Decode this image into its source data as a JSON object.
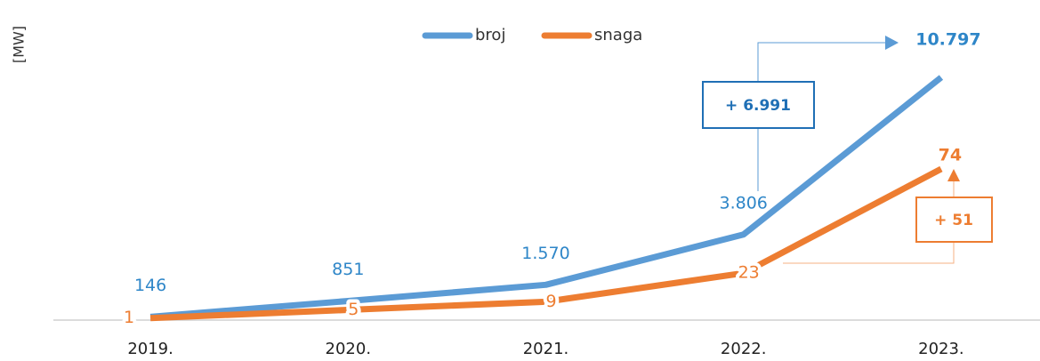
{
  "chart_data": {
    "type": "line",
    "y_label": "[MW]",
    "categories": [
      "2019.",
      "2020.",
      "2021.",
      "2022.",
      "2023."
    ],
    "series": [
      {
        "name": "broj",
        "color": "#5b9bd5",
        "label_color": "#2e86c8",
        "axis": "y2",
        "values": [
          146,
          851,
          1570,
          3806,
          10797
        ],
        "value_labels": [
          "146",
          "851",
          "1.570",
          "3.806",
          "10.797"
        ]
      },
      {
        "name": "snaga",
        "color": "#ed7d31",
        "label_color": "#ed7d31",
        "values": [
          1,
          5,
          9,
          23,
          74
        ]
      }
    ],
    "ylim": [
      0,
      148
    ],
    "y2lim": [
      0,
      13450
    ],
    "legend": "top",
    "annotations": [
      {
        "text": "+ 6.991",
        "color": "#1f6fb5"
      },
      {
        "text": "+ 51",
        "color": "#ed7d31"
      }
    ]
  }
}
